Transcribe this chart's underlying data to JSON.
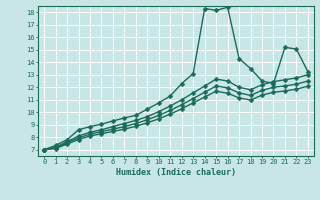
{
  "xlabel": "Humidex (Indice chaleur)",
  "bg_color": "#c8e6e6",
  "grid_color": "#b8d8d8",
  "line_color": "#1a6b5a",
  "xlim": [
    -0.5,
    23.5
  ],
  "ylim": [
    6.5,
    18.5
  ],
  "xticks": [
    0,
    1,
    2,
    3,
    4,
    5,
    6,
    7,
    8,
    9,
    10,
    11,
    12,
    13,
    14,
    15,
    16,
    17,
    18,
    19,
    20,
    21,
    22,
    23
  ],
  "yticks": [
    7,
    8,
    9,
    10,
    11,
    12,
    13,
    14,
    15,
    16,
    17,
    18
  ],
  "series": [
    {
      "x": [
        0,
        1,
        2,
        3,
        4,
        5,
        6,
        7,
        8,
        9,
        10,
        11,
        12,
        13,
        14,
        15,
        16,
        17,
        18,
        19,
        20,
        21,
        22,
        23
      ],
      "y": [
        7.0,
        7.35,
        7.8,
        8.6,
        8.85,
        9.05,
        9.3,
        9.55,
        9.75,
        10.25,
        10.75,
        11.3,
        12.3,
        13.1,
        18.3,
        18.15,
        18.4,
        14.3,
        13.5,
        12.5,
        12.3,
        15.2,
        15.05,
        13.25
      ],
      "markersize": 2.5,
      "linewidth": 1.0
    },
    {
      "x": [
        0,
        1,
        2,
        3,
        4,
        5,
        6,
        7,
        8,
        9,
        10,
        11,
        12,
        13,
        14,
        15,
        16,
        17,
        18,
        19,
        20,
        21,
        22,
        23
      ],
      "y": [
        7.0,
        7.2,
        7.65,
        8.1,
        8.4,
        8.6,
        8.85,
        9.1,
        9.35,
        9.65,
        10.05,
        10.5,
        11.0,
        11.55,
        12.1,
        12.65,
        12.5,
        12.0,
        11.8,
        12.2,
        12.45,
        12.6,
        12.75,
        13.0
      ],
      "markersize": 2.5,
      "linewidth": 1.0
    },
    {
      "x": [
        0,
        1,
        2,
        3,
        4,
        5,
        6,
        7,
        8,
        9,
        10,
        11,
        12,
        13,
        14,
        15,
        16,
        17,
        18,
        19,
        20,
        21,
        22,
        23
      ],
      "y": [
        7.0,
        7.15,
        7.55,
        7.95,
        8.25,
        8.45,
        8.65,
        8.85,
        9.1,
        9.4,
        9.75,
        10.15,
        10.6,
        11.1,
        11.6,
        12.1,
        11.95,
        11.55,
        11.35,
        11.75,
        12.0,
        12.1,
        12.25,
        12.5
      ],
      "markersize": 2.5,
      "linewidth": 1.0
    },
    {
      "x": [
        0,
        1,
        2,
        3,
        4,
        5,
        6,
        7,
        8,
        9,
        10,
        11,
        12,
        13,
        14,
        15,
        16,
        17,
        18,
        19,
        20,
        21,
        22,
        23
      ],
      "y": [
        7.0,
        7.1,
        7.45,
        7.82,
        8.1,
        8.28,
        8.47,
        8.65,
        8.88,
        9.15,
        9.48,
        9.85,
        10.28,
        10.75,
        11.22,
        11.68,
        11.52,
        11.15,
        10.97,
        11.37,
        11.6,
        11.7,
        11.85,
        12.08
      ],
      "markersize": 2.5,
      "linewidth": 1.0
    }
  ]
}
